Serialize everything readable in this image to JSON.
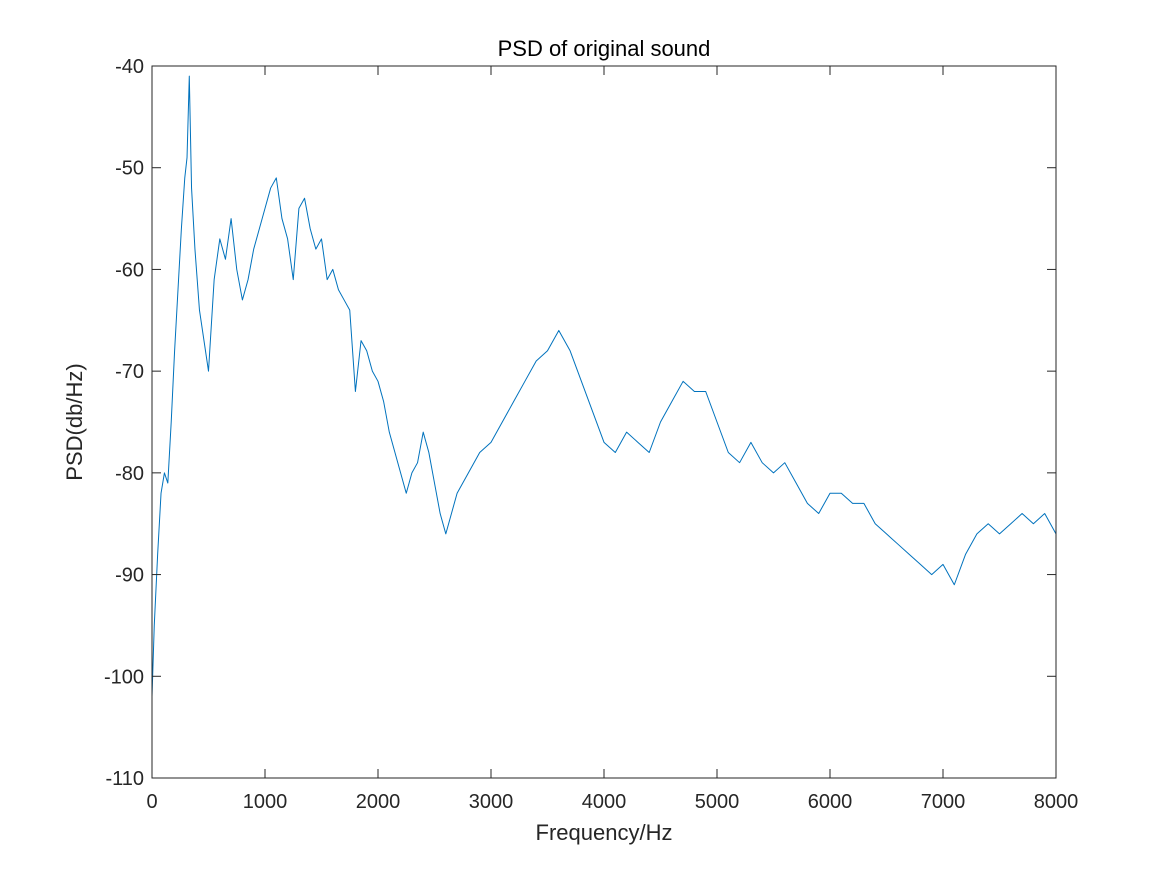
{
  "chart_data": {
    "type": "line",
    "title": "PSD of original sound",
    "xlabel": "Frequency/Hz",
    "ylabel": "PSD(db/Hz)",
    "xlim": [
      0,
      8000
    ],
    "ylim": [
      -110,
      -40
    ],
    "xticks": [
      0,
      1000,
      2000,
      3000,
      4000,
      5000,
      6000,
      7000,
      8000
    ],
    "xtick_labels": [
      "0",
      "1000",
      "2000",
      "3000",
      "4000",
      "5000",
      "6000",
      "7000",
      "8000"
    ],
    "yticks": [
      -40,
      -50,
      -60,
      -70,
      -80,
      -90,
      -100,
      -110
    ],
    "ytick_labels": [
      "-40",
      "-50",
      "-60",
      "-70",
      "-80",
      "-90",
      "-100",
      "-110"
    ],
    "grid": false,
    "box": true,
    "line_color": "#0072BD",
    "series": [
      {
        "x": [
          0,
          20,
          50,
          80,
          110,
          140,
          170,
          200,
          230,
          260,
          290,
          310,
          330,
          350,
          380,
          420,
          460,
          500,
          550,
          600,
          650,
          700,
          750,
          800,
          850,
          900,
          950,
          1000,
          1050,
          1100,
          1150,
          1200,
          1250,
          1300,
          1350,
          1400,
          1450,
          1500,
          1550,
          1600,
          1650,
          1700,
          1750,
          1800,
          1850,
          1900,
          1950,
          2000,
          2050,
          2100,
          2150,
          2200,
          2250,
          2300,
          2350,
          2400,
          2450,
          2500,
          2550,
          2600,
          2700,
          2800,
          2900,
          3000,
          3100,
          3200,
          3300,
          3400,
          3500,
          3600,
          3700,
          3800,
          3900,
          4000,
          4100,
          4200,
          4300,
          4400,
          4500,
          4600,
          4700,
          4800,
          4900,
          5000,
          5100,
          5200,
          5300,
          5400,
          5500,
          5600,
          5700,
          5800,
          5900,
          6000,
          6100,
          6200,
          6300,
          6400,
          6500,
          6600,
          6700,
          6800,
          6900,
          7000,
          7100,
          7200,
          7300,
          7400,
          7500,
          7600,
          7700,
          7800,
          7900,
          8000
        ],
        "y": [
          -102,
          -95,
          -88,
          -82,
          -80,
          -81,
          -75,
          -68,
          -62,
          -56,
          -51,
          -49,
          -41,
          -52,
          -58,
          -64,
          -67,
          -70,
          -61,
          -57,
          -59,
          -55,
          -60,
          -63,
          -61,
          -58,
          -56,
          -54,
          -52,
          -51,
          -55,
          -57,
          -61,
          -54,
          -53,
          -56,
          -58,
          -57,
          -61,
          -60,
          -62,
          -63,
          -64,
          -72,
          -67,
          -68,
          -70,
          -71,
          -73,
          -76,
          -78,
          -80,
          -82,
          -80,
          -79,
          -76,
          -78,
          -81,
          -84,
          -86,
          -82,
          -80,
          -78,
          -77,
          -75,
          -73,
          -71,
          -69,
          -68,
          -66,
          -68,
          -71,
          -74,
          -77,
          -78,
          -76,
          -77,
          -78,
          -75,
          -73,
          -71,
          -72,
          -72,
          -75,
          -78,
          -79,
          -77,
          -79,
          -80,
          -79,
          -81,
          -83,
          -84,
          -82,
          -82,
          -83,
          -83,
          -85,
          -86,
          -87,
          -88,
          -89,
          -90,
          -89,
          -91,
          -88,
          -86,
          -85,
          -86,
          -85,
          -84,
          -85,
          -84,
          -86
        ]
      }
    ]
  }
}
